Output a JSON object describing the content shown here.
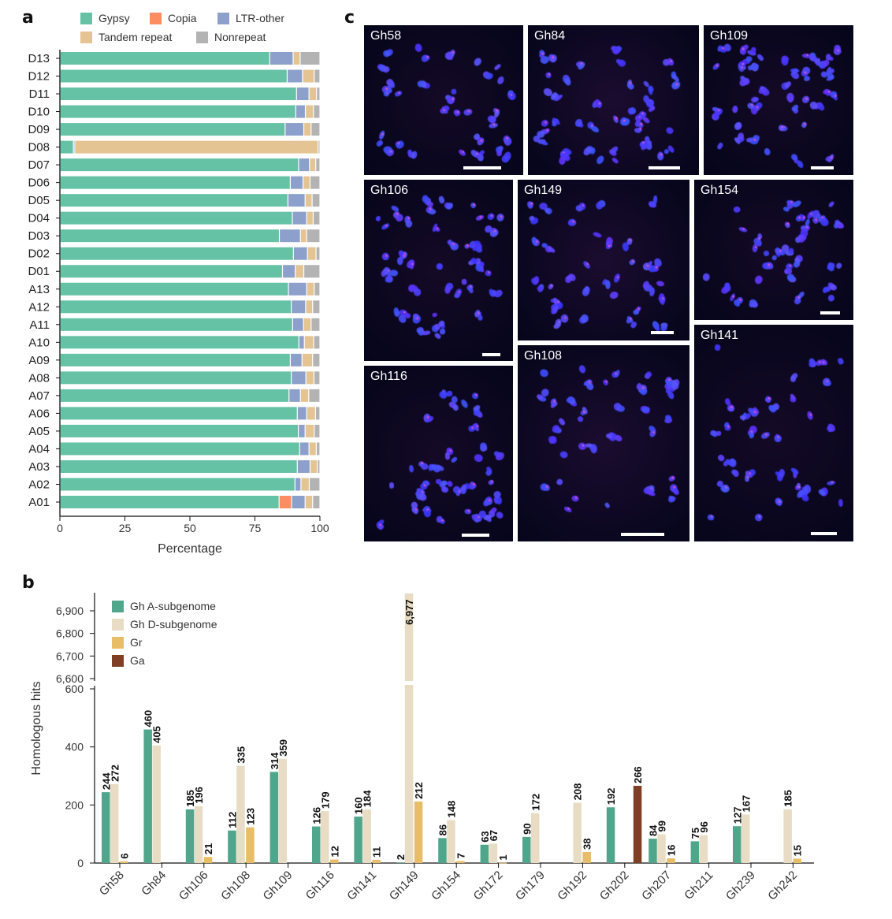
{
  "panels": {
    "a": "a",
    "b": "b",
    "c": "c"
  },
  "colors": {
    "gypsy": "#66c2a5",
    "copia": "#fc8d62",
    "ltr_other": "#8da0cb",
    "tandem": "#e5c494",
    "nonrepeat": "#b3b3b3",
    "gh_a": "#4fa68a",
    "gh_d": "#e8dcc4",
    "gr": "#e8bd68",
    "ga": "#7f3f24"
  },
  "chart_data": [
    {
      "type": "bar",
      "orientation": "horizontal",
      "stacked": true,
      "categories": [
        "D13",
        "D12",
        "D11",
        "D10",
        "D09",
        "D08",
        "D07",
        "D06",
        "D05",
        "D04",
        "D03",
        "D02",
        "D01",
        "A13",
        "A12",
        "A11",
        "A10",
        "A09",
        "A08",
        "A07",
        "A06",
        "A05",
        "A04",
        "A03",
        "A02",
        "A01"
      ],
      "series": [
        {
          "name": "Gypsy",
          "color": "#66c2a5",
          "values": [
            80.7,
            87.4,
            91.0,
            90.7,
            86.6,
            5.2,
            91.8,
            88.6,
            87.7,
            89.4,
            84.4,
            89.8,
            85.6,
            87.9,
            89.0,
            89.5,
            91.9,
            88.6,
            89.0,
            88.1,
            91.3,
            91.7,
            92.2,
            91.3,
            90.4,
            84.3
          ]
        },
        {
          "name": "Copia",
          "color": "#fc8d62",
          "values": [
            0,
            0,
            0,
            0,
            0,
            0,
            0,
            0,
            0,
            0,
            0,
            0,
            0,
            0,
            0,
            0,
            0,
            0,
            0,
            0,
            0,
            0,
            0,
            0,
            0,
            4.8
          ]
        },
        {
          "name": "LTR-other",
          "color": "#8da0cb",
          "values": [
            9.0,
            5.9,
            4.8,
            3.7,
            7.2,
            0.5,
            4.2,
            4.9,
            6.6,
            5.5,
            8.1,
            5.4,
            4.9,
            7.0,
            5.5,
            4.2,
            2.1,
            4.5,
            5.6,
            4.4,
            3.6,
            2.6,
            3.6,
            4.9,
            2.3,
            5.2
          ]
        },
        {
          "name": "Tandem repeat",
          "color": "#e5c494",
          "values": [
            2.7,
            4.5,
            2.9,
            3.1,
            2.8,
            93.6,
            2.4,
            2.7,
            2.7,
            2.5,
            2.4,
            3.3,
            3.3,
            2.9,
            2.7,
            2.9,
            3.6,
            4.1,
            3.1,
            3.2,
            3.4,
            3.5,
            2.8,
            2.8,
            3.2,
            2.9
          ]
        },
        {
          "name": "Nonrepeat",
          "color": "#b3b3b3",
          "values": [
            7.6,
            2.2,
            1.3,
            2.5,
            3.4,
            0.7,
            1.6,
            3.8,
            3.0,
            2.6,
            5.1,
            1.5,
            6.2,
            2.2,
            2.8,
            3.4,
            2.4,
            2.8,
            2.3,
            4.3,
            1.7,
            2.2,
            1.4,
            1.0,
            4.1,
            2.8
          ]
        }
      ],
      "xlabel": "Percentage",
      "xlim": [
        0,
        100
      ],
      "xticks": [
        "0",
        "25",
        "50",
        "75",
        "100"
      ],
      "legend": "top"
    },
    {
      "type": "bar",
      "categories": [
        "Gh58",
        "Gh84",
        "Gh106",
        "Gh108",
        "Gh109",
        "Gh116",
        "Gh141",
        "Gh149",
        "Gh154",
        "Gh172",
        "Gh179",
        "Gh192",
        "Gh202",
        "Gh207",
        "Gh211",
        "Gh239",
        "Gh242"
      ],
      "series": [
        {
          "name": "Gh A-subgenome",
          "color": "#4fa68a",
          "values": [
            244,
            460,
            185,
            112,
            314,
            126,
            160,
            2,
            86,
            63,
            90,
            null,
            192,
            84,
            75,
            127,
            null
          ]
        },
        {
          "name": "Gh D-subgenome",
          "color": "#e8dcc4",
          "values": [
            272,
            405,
            196,
            335,
            359,
            179,
            184,
            6977,
            148,
            67,
            172,
            208,
            null,
            99,
            96,
            167,
            185
          ]
        },
        {
          "name": "Gr",
          "color": "#e8bd68",
          "values": [
            6,
            null,
            21,
            123,
            null,
            12,
            11,
            212,
            7,
            1,
            null,
            38,
            null,
            16,
            null,
            null,
            15
          ]
        },
        {
          "name": "Ga",
          "color": "#7f3f24",
          "values": [
            null,
            null,
            null,
            null,
            null,
            null,
            null,
            null,
            null,
            null,
            null,
            null,
            266,
            null,
            null,
            null,
            null
          ]
        }
      ],
      "data_labels": [
        [
          "244",
          "272",
          "6"
        ],
        [
          "460",
          "405"
        ],
        [
          "185",
          "196",
          "21"
        ],
        [
          "112",
          "335",
          "123"
        ],
        [
          "314",
          "359"
        ],
        [
          "126",
          "179",
          "12"
        ],
        [
          "160",
          "184",
          "11"
        ],
        [
          "2",
          "6,977",
          "212"
        ],
        [
          "86",
          "148",
          "7"
        ],
        [
          "63",
          "67",
          "1"
        ],
        [
          "90",
          "172"
        ],
        [
          "208",
          "38"
        ],
        [
          "192",
          "266"
        ],
        [
          "84",
          "99",
          "16"
        ],
        [
          "75",
          "96"
        ],
        [
          "127",
          "167"
        ],
        [
          "185",
          "15"
        ]
      ],
      "ylabel": "Homologous hits",
      "y_axis_break": true,
      "ylim_lower": [
        0,
        600
      ],
      "ylim_upper": [
        6600,
        6900
      ],
      "yticks_lower": [
        "0",
        "200",
        "400",
        "600"
      ],
      "yticks_upper": [
        "6,600",
        "6,700",
        "6,800",
        "6,900"
      ],
      "legend": "top-left"
    }
  ],
  "micrographs": [
    {
      "label": "Gh58"
    },
    {
      "label": "Gh84"
    },
    {
      "label": "Gh109"
    },
    {
      "label": "Gh106"
    },
    {
      "label": "Gh149"
    },
    {
      "label": "Gh154"
    },
    {
      "label": "Gh116"
    },
    {
      "label": "Gh108"
    },
    {
      "label": "Gh141"
    }
  ]
}
